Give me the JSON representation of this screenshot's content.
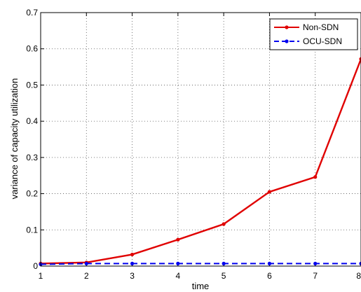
{
  "chart_data": {
    "type": "line",
    "xlabel": "time",
    "ylabel": "variance of capacity utilization",
    "xlim": [
      1,
      8
    ],
    "ylim": [
      0,
      0.7
    ],
    "xticks": [
      "1",
      "2",
      "3",
      "4",
      "5",
      "6",
      "7",
      "8"
    ],
    "yticks": [
      "0",
      "0.1",
      "0.2",
      "0.3",
      "0.4",
      "0.5",
      "0.6",
      "0.7"
    ],
    "grid": true,
    "legend_position": "top-right",
    "x": [
      1,
      2,
      3,
      4,
      5,
      6,
      7,
      8
    ],
    "series": [
      {
        "name": "Non-SDN",
        "color": "#e00000",
        "line_style": "solid",
        "marker": "dot",
        "values": [
          0.007,
          0.01,
          0.032,
          0.073,
          0.116,
          0.205,
          0.246,
          0.572
        ]
      },
      {
        "name": "OCU-SDN",
        "color": "#0000ee",
        "line_style": "dashed",
        "marker": "dot",
        "values": [
          0.005,
          0.007,
          0.007,
          0.007,
          0.007,
          0.007,
          0.007,
          0.007
        ]
      }
    ]
  }
}
